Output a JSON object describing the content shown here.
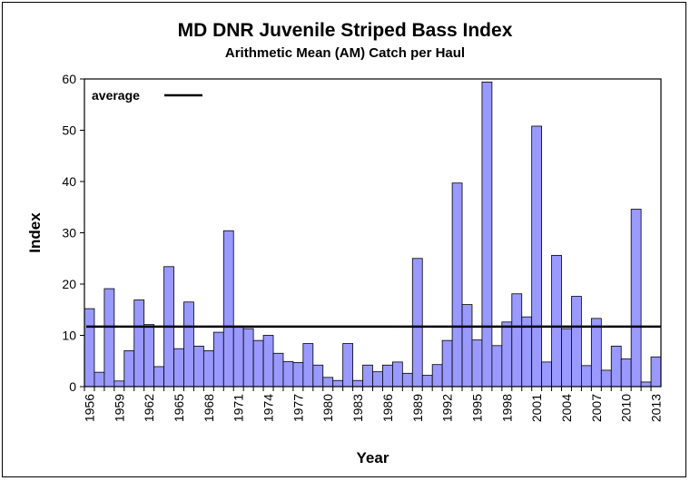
{
  "chart_data": {
    "type": "bar",
    "title": "MD DNR Juvenile Striped Bass Index",
    "subtitle": "Arithmetic Mean (AM) Catch per Haul",
    "xlabel": "Year",
    "ylabel": "Index",
    "ylim": [
      0,
      60
    ],
    "yticks": [
      "0",
      "10",
      "20",
      "30",
      "40",
      "50",
      "60"
    ],
    "x_tick_labels": [
      "1956",
      "1959",
      "1962",
      "1965",
      "1968",
      "1971",
      "1974",
      "1977",
      "1980",
      "1983",
      "1986",
      "1989",
      "1992",
      "1995",
      "1998",
      "2001",
      "2004",
      "2007",
      "2010",
      "2013"
    ],
    "categories": [
      1956,
      1957,
      1958,
      1959,
      1960,
      1961,
      1962,
      1963,
      1964,
      1965,
      1966,
      1967,
      1968,
      1969,
      1970,
      1971,
      1972,
      1973,
      1974,
      1975,
      1976,
      1977,
      1978,
      1979,
      1980,
      1981,
      1982,
      1983,
      1984,
      1985,
      1986,
      1987,
      1988,
      1989,
      1990,
      1991,
      1992,
      1993,
      1994,
      1995,
      1996,
      1997,
      1998,
      1999,
      2000,
      2001,
      2002,
      2003,
      2004,
      2005,
      2006,
      2007,
      2008,
      2009,
      2010,
      2011,
      2012,
      2013
    ],
    "values": [
      15.2,
      2.8,
      19.1,
      1.1,
      7.0,
      16.9,
      12.1,
      3.9,
      23.4,
      7.4,
      16.5,
      7.9,
      7.0,
      10.6,
      30.4,
      11.8,
      11.3,
      9.0,
      10.0,
      6.5,
      4.9,
      4.7,
      8.4,
      4.2,
      1.8,
      1.2,
      8.4,
      1.2,
      4.2,
      2.9,
      4.2,
      4.8,
      2.6,
      25.0,
      2.2,
      4.3,
      9.0,
      39.7,
      16.0,
      9.1,
      59.4,
      8.0,
      12.6,
      18.1,
      13.6,
      50.8,
      4.8,
      25.6,
      11.3,
      17.6,
      4.1,
      13.3,
      3.2,
      7.9,
      5.4,
      34.6,
      0.9,
      5.8
    ],
    "average": 11.7,
    "legend": [
      {
        "name": "average",
        "placement": "top-left"
      }
    ],
    "grid": false,
    "bar_color": "#9999ff"
  }
}
